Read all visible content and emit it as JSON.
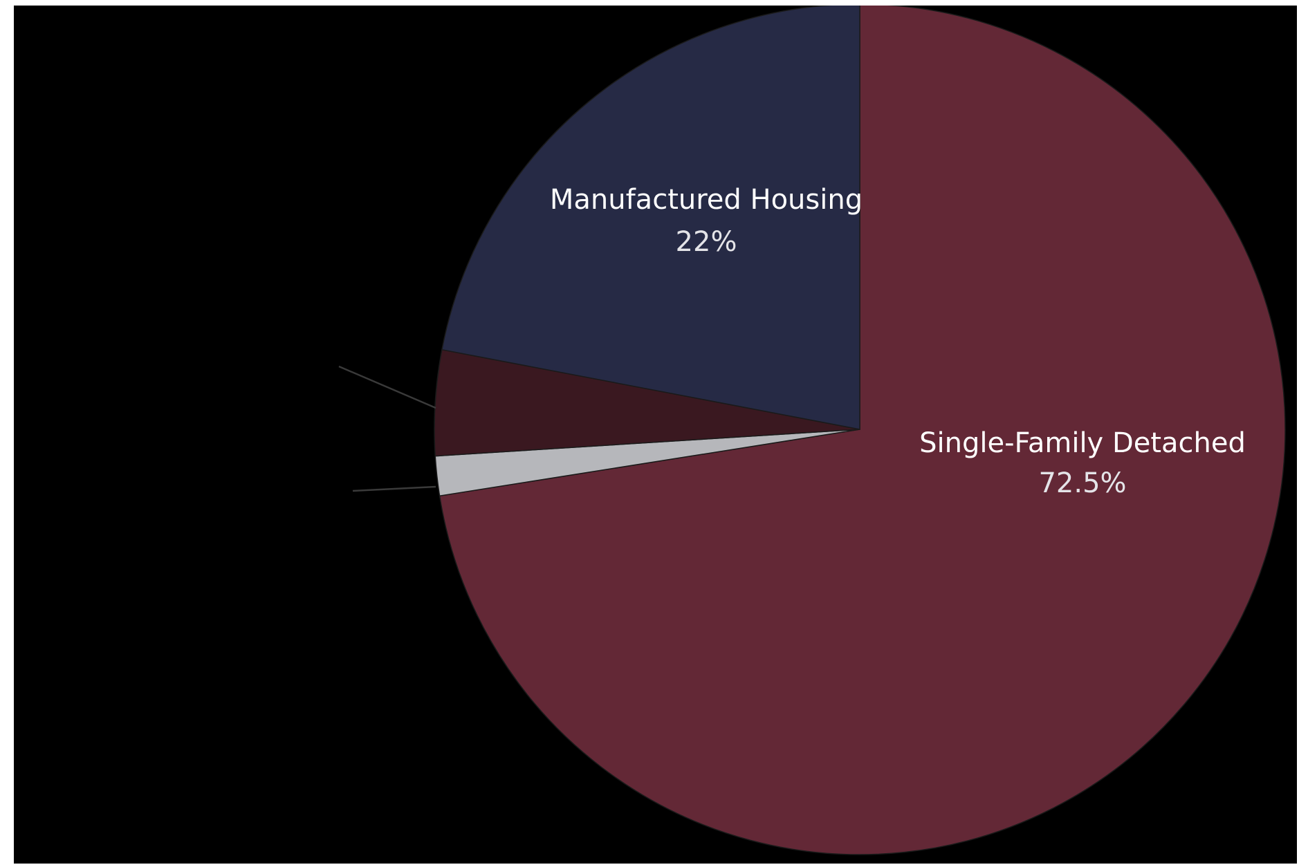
{
  "chart_data": {
    "type": "pie",
    "title": "",
    "start_angle_deg": 0,
    "direction": "clockwise",
    "slices": [
      {
        "label": "Single-Family Detached",
        "value_text": "72.5%",
        "value": 72.5,
        "color": "#632836",
        "show_label": true
      },
      {
        "label": "",
        "value_text": "",
        "value": 1.5,
        "color": "#b6b7bb",
        "show_label": false,
        "leader_line": true
      },
      {
        "label": "",
        "value_text": "",
        "value": 4.0,
        "color": "#3a1820",
        "show_label": false,
        "leader_line": true
      },
      {
        "label": "Manufactured Housing",
        "value_text": "22%",
        "value": 22,
        "color": "#262a45",
        "show_label": true
      }
    ],
    "background": "#000000",
    "slice_border_color": "#1a1a1a",
    "legend": "none"
  }
}
